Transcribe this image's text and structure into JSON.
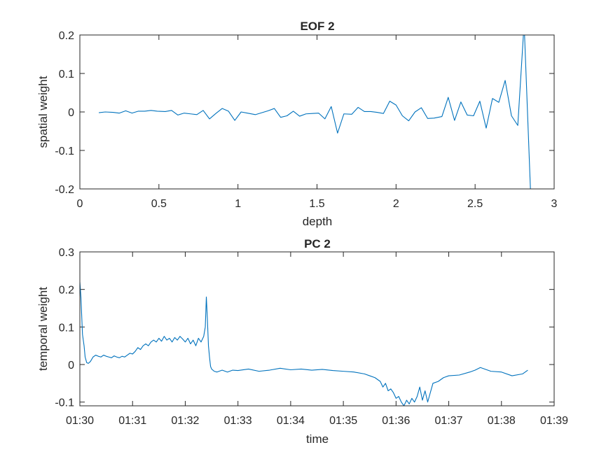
{
  "colors": {
    "line": "#0072BD",
    "axis": "#262626",
    "background": "#ffffff"
  },
  "chart_data": [
    {
      "type": "line",
      "title": "EOF 2",
      "xlabel": "depth",
      "ylabel": "spatial weight",
      "xlim": [
        0,
        3
      ],
      "ylim": [
        -0.2,
        0.2
      ],
      "xticks": [
        0,
        0.5,
        1,
        1.5,
        2,
        2.5,
        3
      ],
      "xtick_labels": [
        "0",
        "0.5",
        "1",
        "1.5",
        "2",
        "2.5",
        "3"
      ],
      "yticks": [
        -0.2,
        -0.1,
        0,
        0.1,
        0.2
      ],
      "ytick_labels": [
        "-0.2",
        "-0.1",
        "0",
        "0.1",
        "0.2"
      ],
      "series": [
        {
          "name": "EOF 2",
          "x": [
            0.12,
            0.16,
            0.21,
            0.25,
            0.29,
            0.33,
            0.37,
            0.41,
            0.45,
            0.49,
            0.54,
            0.58,
            0.62,
            0.66,
            0.7,
            0.74,
            0.78,
            0.82,
            0.86,
            0.9,
            0.94,
            0.98,
            1.02,
            1.06,
            1.11,
            1.15,
            1.19,
            1.23,
            1.27,
            1.31,
            1.35,
            1.39,
            1.43,
            1.47,
            1.51,
            1.55,
            1.59,
            1.63,
            1.67,
            1.72,
            1.76,
            1.8,
            1.84,
            1.88,
            1.92,
            1.96,
            2.0,
            2.04,
            2.08,
            2.12,
            2.16,
            2.2,
            2.24,
            2.29,
            2.33,
            2.37,
            2.41,
            2.45,
            2.49,
            2.53,
            2.57,
            2.61,
            2.65,
            2.69,
            2.73,
            2.77,
            2.81,
            2.85
          ],
          "values": [
            -0.002,
            0.0,
            -0.001,
            -0.003,
            0.003,
            -0.003,
            0.002,
            0.002,
            0.004,
            0.002,
            0.001,
            0.004,
            -0.008,
            -0.003,
            -0.005,
            -0.007,
            0.004,
            -0.018,
            -0.004,
            0.009,
            0.002,
            -0.022,
            0.0,
            -0.003,
            -0.007,
            -0.002,
            0.003,
            0.009,
            -0.014,
            -0.01,
            0.002,
            -0.011,
            -0.005,
            -0.004,
            -0.003,
            -0.018,
            0.014,
            -0.055,
            -0.005,
            -0.006,
            0.012,
            0.001,
            0.001,
            -0.001,
            -0.004,
            0.028,
            0.018,
            -0.01,
            -0.023,
            0.0,
            0.011,
            -0.017,
            -0.016,
            -0.012,
            0.038,
            -0.022,
            0.026,
            -0.008,
            -0.01,
            0.028,
            -0.042,
            0.035,
            0.025,
            0.082,
            -0.01,
            -0.035,
            0.23,
            -0.2
          ]
        }
      ]
    },
    {
      "type": "line",
      "title": "PC 2",
      "xlabel": "time",
      "ylabel": "temporal weight",
      "xlim": [
        0,
        9
      ],
      "ylim": [
        -0.11,
        0.3
      ],
      "xticks": [
        0,
        1,
        2,
        3,
        4,
        5,
        6,
        7,
        8,
        9
      ],
      "xtick_labels": [
        "01:30",
        "01:31",
        "01:32",
        "01:33",
        "01:34",
        "01:35",
        "01:36",
        "01:37",
        "01:38",
        "01:39"
      ],
      "yticks": [
        -0.1,
        0,
        0.1,
        0.2,
        0.3
      ],
      "ytick_labels": [
        "-0.1",
        "0",
        "0.1",
        "0.2",
        "0.3"
      ],
      "series": [
        {
          "name": "PC 2",
          "x": [
            0.0,
            0.02,
            0.05,
            0.08,
            0.1,
            0.13,
            0.16,
            0.2,
            0.25,
            0.3,
            0.35,
            0.4,
            0.45,
            0.5,
            0.55,
            0.6,
            0.65,
            0.7,
            0.75,
            0.8,
            0.85,
            0.9,
            0.95,
            1.0,
            1.05,
            1.1,
            1.15,
            1.2,
            1.25,
            1.3,
            1.35,
            1.4,
            1.45,
            1.5,
            1.55,
            1.6,
            1.65,
            1.7,
            1.75,
            1.8,
            1.85,
            1.9,
            1.95,
            2.0,
            2.05,
            2.1,
            2.15,
            2.2,
            2.25,
            2.3,
            2.35,
            2.38,
            2.4,
            2.42,
            2.44,
            2.46,
            2.48,
            2.5,
            2.55,
            2.6,
            2.7,
            2.8,
            2.9,
            3.0,
            3.2,
            3.4,
            3.6,
            3.8,
            4.0,
            4.2,
            4.4,
            4.6,
            4.8,
            5.0,
            5.2,
            5.4,
            5.5,
            5.6,
            5.7,
            5.75,
            5.8,
            5.85,
            5.9,
            5.95,
            6.0,
            6.05,
            6.1,
            6.15,
            6.2,
            6.25,
            6.3,
            6.35,
            6.4,
            6.45,
            6.5,
            6.55,
            6.6,
            6.7,
            6.8,
            6.9,
            7.0,
            7.2,
            7.4,
            7.5,
            7.6,
            7.8,
            8.0,
            8.2,
            8.4,
            8.5
          ],
          "values": [
            0.22,
            0.18,
            0.08,
            0.05,
            0.02,
            0.005,
            0.003,
            0.008,
            0.02,
            0.025,
            0.022,
            0.02,
            0.025,
            0.022,
            0.02,
            0.018,
            0.023,
            0.02,
            0.018,
            0.022,
            0.02,
            0.025,
            0.03,
            0.028,
            0.035,
            0.045,
            0.04,
            0.05,
            0.055,
            0.05,
            0.06,
            0.065,
            0.06,
            0.07,
            0.062,
            0.075,
            0.065,
            0.07,
            0.06,
            0.072,
            0.065,
            0.075,
            0.068,
            0.06,
            0.07,
            0.055,
            0.065,
            0.05,
            0.07,
            0.06,
            0.075,
            0.1,
            0.18,
            0.12,
            0.05,
            0.02,
            -0.005,
            -0.012,
            -0.018,
            -0.02,
            -0.015,
            -0.02,
            -0.015,
            -0.016,
            -0.012,
            -0.018,
            -0.015,
            -0.01,
            -0.014,
            -0.012,
            -0.015,
            -0.013,
            -0.016,
            -0.018,
            -0.02,
            -0.025,
            -0.03,
            -0.035,
            -0.045,
            -0.06,
            -0.05,
            -0.07,
            -0.065,
            -0.075,
            -0.09,
            -0.085,
            -0.1,
            -0.11,
            -0.095,
            -0.105,
            -0.09,
            -0.1,
            -0.085,
            -0.06,
            -0.095,
            -0.07,
            -0.1,
            -0.05,
            -0.045,
            -0.035,
            -0.03,
            -0.028,
            -0.02,
            -0.015,
            -0.008,
            -0.018,
            -0.02,
            -0.03,
            -0.025,
            -0.015
          ]
        }
      ]
    }
  ]
}
